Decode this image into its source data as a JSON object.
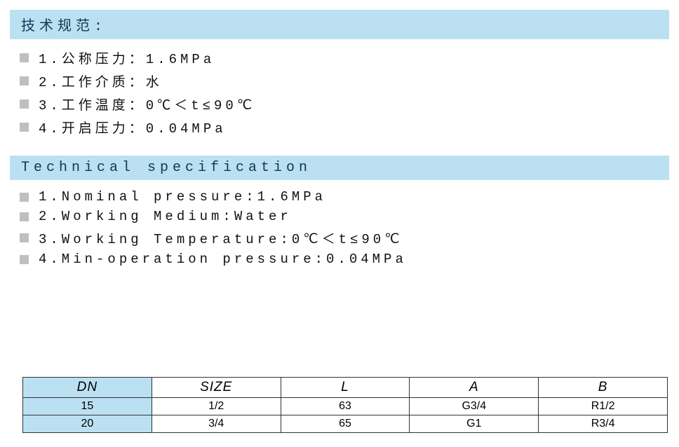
{
  "section_cn": {
    "title": "技术规范:",
    "items": [
      "1.公称压力：1.6MPa",
      "2.工作介质：水",
      "3.工作温度：0℃＜t≤90℃",
      "4.开启压力：0.04MPa"
    ]
  },
  "section_en": {
    "title": "Technical specification",
    "items": [
      "1.Nominal pressure:1.6MPa",
      "2.Working Medium:Water",
      "3.Working Temperature:0℃＜t≤90℃",
      "4.Min-operation pressure:0.04MPa"
    ]
  },
  "table": {
    "columns": [
      "DN",
      "SIZE",
      "L",
      "A",
      "B"
    ],
    "rows": [
      [
        "15",
        "1/2",
        "63",
        "G3/4",
        "R1/2"
      ],
      [
        "20",
        "3/4",
        "65",
        "G1",
        "R3/4"
      ]
    ],
    "header_bg": "#bbe0f2",
    "dn_col_bg": "#bbe0f2",
    "border_color": "#333333"
  },
  "colors": {
    "section_header_bg": "#bbe0f2",
    "section_header_text": "#0d3a55",
    "bullet": "#bfbfbf",
    "body_text": "#111111",
    "page_bg": "#ffffff"
  },
  "fonts": {
    "body_size_pt": 19,
    "header_size_pt": 20,
    "table_header_size_pt": 19,
    "table_cell_size_pt": 16
  }
}
